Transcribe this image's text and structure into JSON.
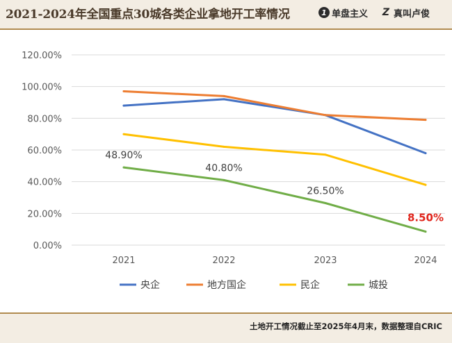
{
  "header": {
    "title": "2021-2024年全国重点30城各类企业拿地开工率情况",
    "brand_primary": {
      "icon": "leaf-number-icon",
      "glyph": "1",
      "label": "单盘主义"
    },
    "brand_secondary": {
      "icon": "z-letter-icon",
      "glyph": "Z",
      "label": "真叫卢俊"
    }
  },
  "footer": {
    "note": "土地开工情况截止至2025年4月末，数据整理自CRIC"
  },
  "chart_data": {
    "type": "line",
    "title": "2021-2024年全国重点30城各类企业拿地开工率情况",
    "xlabel": "",
    "ylabel": "",
    "categories": [
      "2021",
      "2022",
      "2023",
      "2024"
    ],
    "ylim": [
      0,
      120
    ],
    "yticks": [
      "0.00%",
      "20.00%",
      "40.00%",
      "60.00%",
      "80.00%",
      "100.00%",
      "120.00%"
    ],
    "grid": true,
    "legend_position": "bottom",
    "series": [
      {
        "name": "央企",
        "color": "#4472c4",
        "values": [
          88,
          92,
          82,
          58
        ]
      },
      {
        "name": "地方国企",
        "color": "#ed7d31",
        "values": [
          97,
          94,
          82,
          79
        ]
      },
      {
        "name": "民企",
        "color": "#ffc000",
        "values": [
          70,
          62,
          57,
          38
        ]
      },
      {
        "name": "城投",
        "color": "#70ad47",
        "values": [
          49,
          41,
          26.5,
          8.5
        ]
      }
    ],
    "annotations": [
      {
        "series": "城投",
        "index": 0,
        "label": "48.90%",
        "highlight": false
      },
      {
        "series": "城投",
        "index": 1,
        "label": "40.80%",
        "highlight": false
      },
      {
        "series": "城投",
        "index": 2,
        "label": "26.50%",
        "highlight": false
      },
      {
        "series": "城投",
        "index": 3,
        "label": "8.50%",
        "highlight": true
      }
    ],
    "highlight_color": "#e0241b"
  }
}
